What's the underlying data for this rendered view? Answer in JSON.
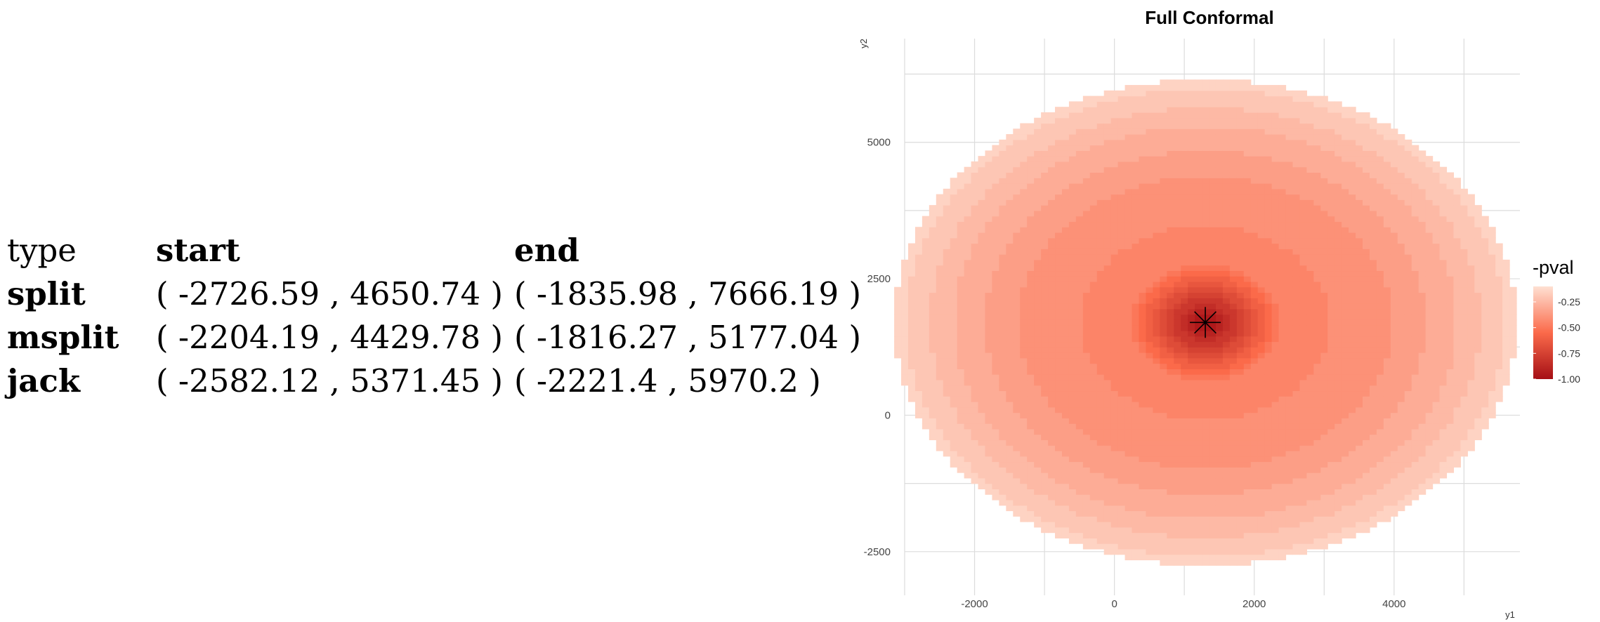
{
  "table": {
    "headers": [
      "type",
      "start",
      "end"
    ],
    "rows": [
      {
        "type": "split",
        "start": "( -2726.59 , 4650.74 )",
        "end": "( -1835.98 , 7666.19 )"
      },
      {
        "type": "msplit",
        "start": "( -2204.19 , 4429.78 )",
        "end": "( -1816.27 , 5177.04 )"
      },
      {
        "type": "jack",
        "start": "( -2582.12 , 5371.45 )",
        "end": "( -2221.4 , 5970.2 )"
      }
    ]
  },
  "chart_data": {
    "type": "heatmap",
    "title": "Full Conformal",
    "xlabel": "y1",
    "ylabel": "y2",
    "xlim": [
      -3000,
      5800
    ],
    "ylim": [
      -3300,
      6900
    ],
    "x_ticks": [
      -2000,
      0,
      2000,
      4000
    ],
    "y_ticks": [
      -2500,
      0,
      2500,
      5000
    ],
    "grid": true,
    "legend": {
      "title": "-pval",
      "position": "right",
      "ticks": [
        -0.25,
        -0.5,
        -0.75,
        -1.0
      ],
      "tick_labels": [
        "-0.25",
        "-0.50",
        "-0.75",
        "-1.00"
      ],
      "range": [
        -1.0,
        -0.1
      ]
    },
    "colors": {
      "high": "#fee0d2",
      "mid": "#fb6a4a",
      "low": "#a50f15"
    },
    "center": {
      "x": 1300,
      "y": 1700
    },
    "radius": 4450,
    "point_marker": {
      "x": 1300,
      "y": 1700,
      "shape": "asterisk"
    }
  }
}
